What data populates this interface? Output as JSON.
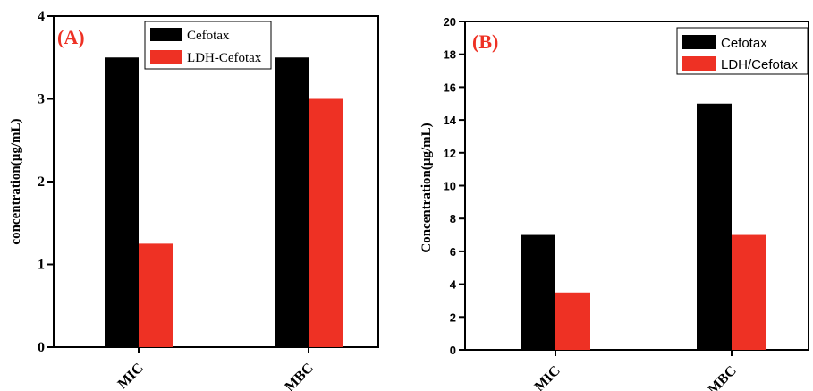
{
  "chart_data": [
    {
      "type": "bar",
      "panel_label": "(A)",
      "categories": [
        "MIC",
        "MBC"
      ],
      "series": [
        {
          "name": "Cefotax",
          "values": [
            3.5,
            3.5
          ],
          "color": "#000000"
        },
        {
          "name": "LDH-Cefotax",
          "values": [
            1.25,
            3.0
          ],
          "color": "#ee3124"
        }
      ],
      "ylabel": "concentration(µg/mL)",
      "xlabel": "",
      "ylim": [
        0,
        4
      ],
      "yticks": [
        "0",
        "1",
        "2",
        "3",
        "4"
      ],
      "legend_position": "top-right",
      "grid": false,
      "panel_label_color": "#ee3124"
    },
    {
      "type": "bar",
      "panel_label": "(B)",
      "categories": [
        "MIC",
        "MBC"
      ],
      "series": [
        {
          "name": "Cefotax",
          "values": [
            7,
            15
          ],
          "color": "#000000"
        },
        {
          "name": "LDH/Cefotax",
          "values": [
            3.5,
            7
          ],
          "color": "#ee3124"
        }
      ],
      "ylabel": "Concentration(µg/mL)",
      "xlabel": "",
      "ylim": [
        0,
        20
      ],
      "yticks": [
        "0",
        "2",
        "4",
        "6",
        "8",
        "10",
        "12",
        "14",
        "16",
        "18",
        "20"
      ],
      "legend_position": "top-right",
      "grid": false,
      "panel_label_color": "#ee3124"
    }
  ]
}
